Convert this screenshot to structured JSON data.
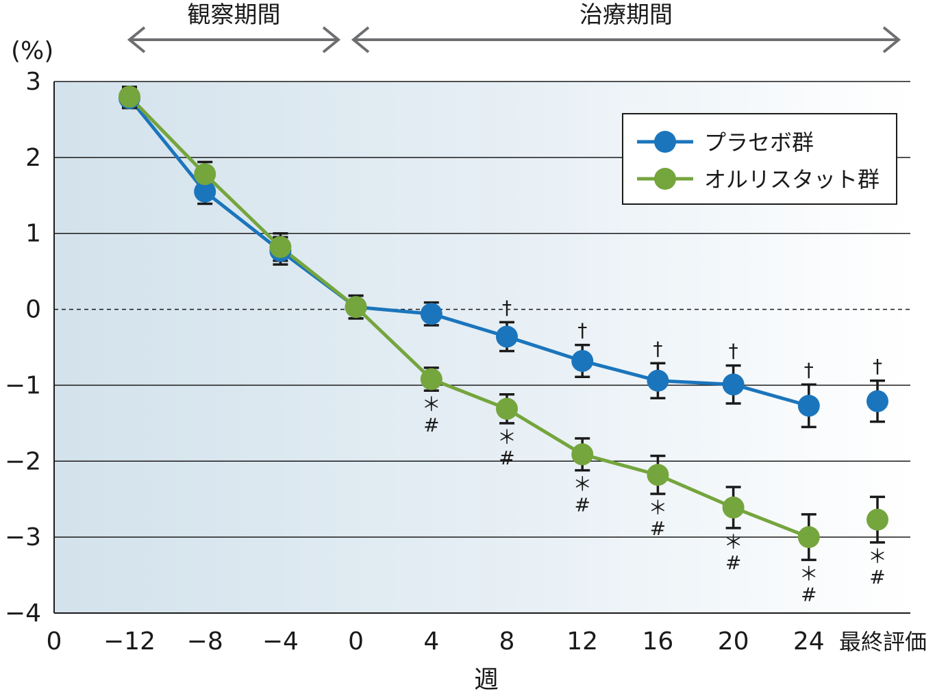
{
  "chart_data": {
    "type": "line",
    "ylabel": "(%)",
    "xlabel": "週",
    "ylim": [
      -4,
      3
    ],
    "yticks": [
      3,
      2,
      1,
      0,
      -1,
      -2,
      -3,
      -4
    ],
    "ytick_labels": [
      "3",
      "2",
      "1",
      "0",
      "−1",
      "−2",
      "−3",
      "−4"
    ],
    "x_origin_label": "0",
    "categories": [
      "−12",
      "−8",
      "−4",
      "0",
      "4",
      "8",
      "12",
      "16",
      "20",
      "24",
      "最終評価"
    ],
    "periods": [
      {
        "label": "観察期間",
        "from": "−12",
        "to": "0"
      },
      {
        "label": "治療期間",
        "from": "0",
        "to": "最終評価"
      }
    ],
    "series": [
      {
        "name": "プラセボ群",
        "color": "#1b75bc",
        "values": [
          2.78,
          1.55,
          0.77,
          0.03,
          -0.06,
          -0.36,
          -0.68,
          -0.94,
          -0.99,
          -1.27,
          -1.21
        ],
        "errors": [
          0.13,
          0.16,
          0.18,
          0.15,
          0.15,
          0.19,
          0.21,
          0.23,
          0.25,
          0.28,
          0.27
        ],
        "connected": [
          true,
          true,
          true,
          true,
          true,
          true,
          true,
          true,
          true,
          true,
          false
        ]
      },
      {
        "name": "オルリスタット群",
        "color": "#75a53d",
        "values": [
          2.8,
          1.78,
          0.82,
          0.03,
          -0.92,
          -1.31,
          -1.91,
          -2.18,
          -2.61,
          -3.0,
          -2.77
        ],
        "errors": [
          0.13,
          0.16,
          0.18,
          0.15,
          0.15,
          0.19,
          0.21,
          0.25,
          0.27,
          0.3,
          0.3
        ],
        "connected": [
          true,
          true,
          true,
          true,
          true,
          true,
          true,
          true,
          true,
          true,
          false
        ]
      }
    ],
    "annotations": {
      "dagger": {
        "symbol": "†",
        "categories": [
          "8",
          "12",
          "16",
          "20",
          "24",
          "最終評価"
        ]
      },
      "star": {
        "symbol": "＊",
        "categories": [
          "4",
          "8",
          "12",
          "16",
          "20",
          "24",
          "最終評価"
        ]
      },
      "hash": {
        "symbol": "#",
        "categories": [
          "4",
          "8",
          "12",
          "16",
          "20",
          "24",
          "最終評価"
        ]
      }
    },
    "legend": {
      "position": "top-right"
    },
    "grid": true,
    "zero_line_style": "dashed"
  }
}
